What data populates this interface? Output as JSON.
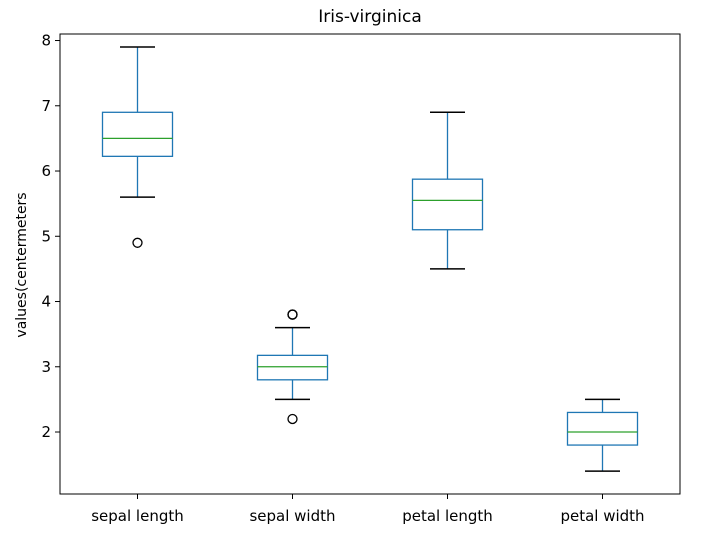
{
  "chart_data": {
    "type": "box",
    "title": "Iris-virginica",
    "xlabel": "",
    "ylabel": "values(centermeters",
    "ylim": [
      1.05,
      8.1
    ],
    "yticks": [
      2,
      3,
      4,
      5,
      6,
      7,
      8
    ],
    "grid": false,
    "colors": {
      "box": "#1f77b4",
      "median": "#2ca02c",
      "outlier": "#000000",
      "axis": "#000000"
    },
    "categories": [
      "sepal length",
      "sepal width",
      "petal length",
      "petal width"
    ],
    "series": [
      {
        "category": "sepal length",
        "whisker_low": 5.6,
        "q1": 6.225,
        "median": 6.5,
        "q3": 6.9,
        "whisker_high": 7.9,
        "outliers": [
          4.9
        ]
      },
      {
        "category": "sepal width",
        "whisker_low": 2.5,
        "q1": 2.8,
        "median": 3.0,
        "q3": 3.175,
        "whisker_high": 3.6,
        "outliers": [
          3.8,
          3.8,
          2.2
        ]
      },
      {
        "category": "petal length",
        "whisker_low": 4.5,
        "q1": 5.1,
        "median": 5.55,
        "q3": 5.875,
        "whisker_high": 6.9,
        "outliers": []
      },
      {
        "category": "petal width",
        "whisker_low": 1.4,
        "q1": 1.8,
        "median": 2.0,
        "q3": 2.3,
        "whisker_high": 2.5,
        "outliers": []
      }
    ]
  }
}
